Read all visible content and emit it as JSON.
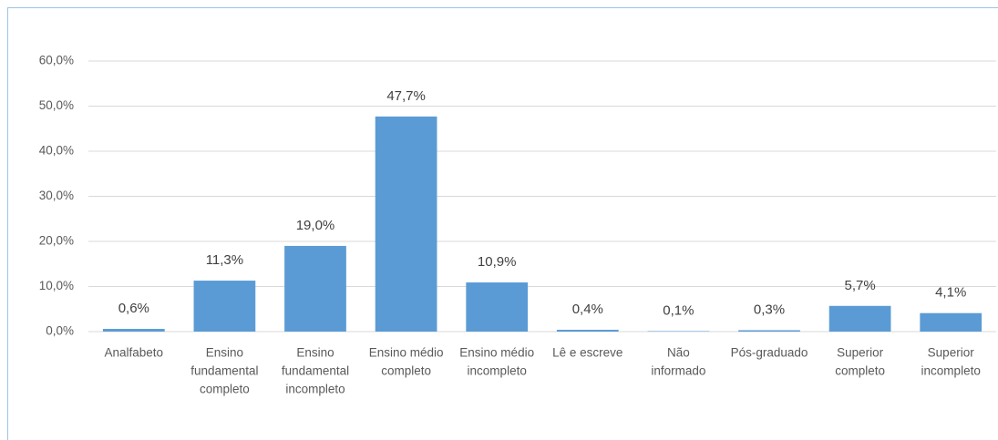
{
  "chart_data": {
    "type": "bar",
    "categories": [
      [
        "Analfabeto"
      ],
      [
        "Ensino",
        "fundamental",
        "completo"
      ],
      [
        "Ensino",
        "fundamental",
        "incompleto"
      ],
      [
        "Ensino médio",
        "completo"
      ],
      [
        "Ensino médio",
        "incompleto"
      ],
      [
        "Lê e escreve"
      ],
      [
        "Não",
        "informado"
      ],
      [
        "Pós-graduado"
      ],
      [
        "Superior",
        "completo"
      ],
      [
        "Superior",
        "incompleto"
      ]
    ],
    "values": [
      0.6,
      11.3,
      19.0,
      47.7,
      10.9,
      0.4,
      0.1,
      0.3,
      5.7,
      4.1
    ],
    "value_labels": [
      "0,6%",
      "11,3%",
      "19,0%",
      "47,7%",
      "10,9%",
      "0,4%",
      "0,1%",
      "0,3%",
      "5,7%",
      "4,1%"
    ],
    "color": "#5b9bd5",
    "ylim": [
      0,
      60
    ],
    "yticks": [
      {
        "value": 0,
        "label": "0,0%"
      },
      {
        "value": 10,
        "label": "10,0%"
      },
      {
        "value": 20,
        "label": "20,0%"
      },
      {
        "value": 30,
        "label": "30,0%"
      },
      {
        "value": 40,
        "label": "40,0%"
      },
      {
        "value": 50,
        "label": "50,0%"
      },
      {
        "value": 60,
        "label": "60,0%"
      }
    ],
    "grid": true
  }
}
